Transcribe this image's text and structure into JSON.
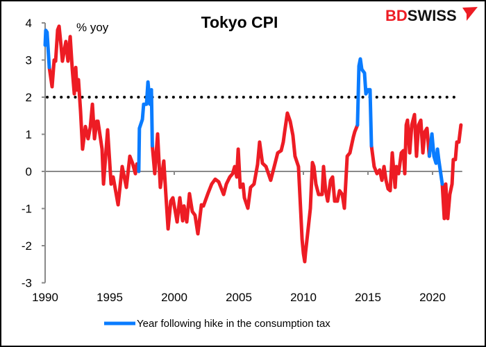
{
  "chart_data": {
    "type": "line",
    "title": "Tokyo CPI",
    "ylabel": "% yoy",
    "xlabel": "",
    "xlim": [
      1990,
      2022.3
    ],
    "ylim": [
      -3,
      4
    ],
    "x_ticks": [
      "1990",
      "1995",
      "2000",
      "2005",
      "2010",
      "2015",
      "2020"
    ],
    "y_ticks": [
      "4",
      "3",
      "2",
      "1",
      "0",
      "-1",
      "-2",
      "-3"
    ],
    "grid": false,
    "reference_line": {
      "value": 2,
      "style": "dotted",
      "color": "#000000"
    },
    "legend": {
      "placement": "bottom",
      "entries": [
        {
          "label": "Year following hike in the consumption tax",
          "color": "#0A7CFF"
        }
      ]
    },
    "colors": {
      "base": "#ED1C24",
      "highlight": "#0A7CFF",
      "axis": "#898989"
    },
    "highlight_periods": [
      [
        1990.0,
        1990.32
      ],
      [
        1997.25,
        1998.3
      ],
      [
        2014.19,
        2015.27
      ],
      [
        2019.75,
        2020.75
      ]
    ],
    "series": [
      {
        "points": [
          [
            1990.0,
            3.4
          ],
          [
            1990.05,
            3.8
          ],
          [
            1990.15,
            3.75
          ],
          [
            1990.32,
            2.8
          ],
          [
            1990.54,
            2.28
          ],
          [
            1990.7,
            3.0
          ],
          [
            1990.81,
            2.97
          ],
          [
            1990.97,
            3.81
          ],
          [
            1991.08,
            3.91
          ],
          [
            1991.24,
            3.35
          ],
          [
            1991.34,
            2.97
          ],
          [
            1991.61,
            3.5
          ],
          [
            1991.77,
            2.97
          ],
          [
            1991.94,
            3.63
          ],
          [
            1992.1,
            2.75
          ],
          [
            1992.26,
            2.09
          ],
          [
            1992.37,
            2.8
          ],
          [
            1992.47,
            2.19
          ],
          [
            1992.58,
            2.47
          ],
          [
            1992.74,
            1.63
          ],
          [
            1992.9,
            0.6
          ],
          [
            1993.12,
            1.21
          ],
          [
            1993.33,
            0.88
          ],
          [
            1993.5,
            1.2
          ],
          [
            1993.66,
            1.81
          ],
          [
            1993.82,
            0.88
          ],
          [
            1994.0,
            1.35
          ],
          [
            1994.09,
            1.35
          ],
          [
            1994.41,
            0.6
          ],
          [
            1994.52,
            -0.34
          ],
          [
            1994.84,
            1.12
          ],
          [
            1995.11,
            -0.34
          ],
          [
            1995.27,
            -0.15
          ],
          [
            1995.65,
            -0.9
          ],
          [
            1995.97,
            0.13
          ],
          [
            1996.29,
            -0.43
          ],
          [
            1996.56,
            0.41
          ],
          [
            1996.77,
            0.22
          ],
          [
            1996.99,
            -0.06
          ],
          [
            1997.1,
            0.2
          ],
          [
            1997.25,
            0.0
          ],
          [
            1997.3,
            1.16
          ],
          [
            1997.53,
            1.4
          ],
          [
            1997.63,
            1.81
          ],
          [
            1997.85,
            1.81
          ],
          [
            1997.96,
            2.41
          ],
          [
            1998.12,
            1.81
          ],
          [
            1998.23,
            2.2
          ],
          [
            1998.3,
            0.69
          ],
          [
            1998.49,
            -0.06
          ],
          [
            1998.71,
            1.01
          ],
          [
            1998.92,
            -0.43
          ],
          [
            1999.19,
            0.28
          ],
          [
            1999.35,
            -0.62
          ],
          [
            1999.52,
            -1.55
          ],
          [
            1999.73,
            -0.8
          ],
          [
            1999.89,
            -0.71
          ],
          [
            2000.22,
            -1.36
          ],
          [
            2000.43,
            -0.71
          ],
          [
            2000.65,
            -1.33
          ],
          [
            2000.75,
            -0.93
          ],
          [
            2000.97,
            -1.36
          ],
          [
            2001.18,
            -0.6
          ],
          [
            2001.4,
            -1.08
          ],
          [
            2001.61,
            -1.18
          ],
          [
            2001.83,
            -1.68
          ],
          [
            2002.1,
            -0.9
          ],
          [
            2002.26,
            -0.93
          ],
          [
            2002.6,
            -0.6
          ],
          [
            2002.9,
            -0.34
          ],
          [
            2003.17,
            -0.21
          ],
          [
            2003.44,
            -0.28
          ],
          [
            2003.82,
            -0.62
          ],
          [
            2004.03,
            -0.34
          ],
          [
            2004.3,
            -0.15
          ],
          [
            2004.52,
            -0.06
          ],
          [
            2004.68,
            0.13
          ],
          [
            2004.84,
            -0.15
          ],
          [
            2004.95,
            0.6
          ],
          [
            2005.11,
            -0.43
          ],
          [
            2005.32,
            -0.34
          ],
          [
            2005.43,
            -0.71
          ],
          [
            2005.7,
            -0.99
          ],
          [
            2005.91,
            -0.43
          ],
          [
            2006.18,
            -0.34
          ],
          [
            2006.45,
            0.19
          ],
          [
            2006.61,
            0.79
          ],
          [
            2006.83,
            0.22
          ],
          [
            2007.1,
            0.13
          ],
          [
            2007.47,
            -0.24
          ],
          [
            2007.74,
            0.13
          ],
          [
            2008.01,
            0.5
          ],
          [
            2008.28,
            0.56
          ],
          [
            2008.44,
            0.79
          ],
          [
            2008.55,
            1.07
          ],
          [
            2008.76,
            1.57
          ],
          [
            2008.98,
            1.35
          ],
          [
            2009.19,
            0.97
          ],
          [
            2009.35,
            0.41
          ],
          [
            2009.62,
            0.13
          ],
          [
            2009.78,
            -0.99
          ],
          [
            2009.9,
            -1.83
          ],
          [
            2010.0,
            -2.21
          ],
          [
            2010.1,
            -2.43
          ],
          [
            2010.16,
            -2.2
          ],
          [
            2010.38,
            -1.5
          ],
          [
            2010.54,
            -1.0
          ],
          [
            2010.7,
            0.24
          ],
          [
            2010.81,
            0.13
          ],
          [
            2010.97,
            -0.34
          ],
          [
            2011.18,
            -0.62
          ],
          [
            2011.45,
            -0.62
          ],
          [
            2011.56,
            0.13
          ],
          [
            2011.72,
            -0.52
          ],
          [
            2011.88,
            -0.8
          ],
          [
            2012.1,
            -0.24
          ],
          [
            2012.26,
            -0.15
          ],
          [
            2012.42,
            -0.8
          ],
          [
            2012.63,
            -0.8
          ],
          [
            2012.8,
            -0.52
          ],
          [
            2013.01,
            -0.62
          ],
          [
            2013.17,
            -0.99
          ],
          [
            2013.39,
            0.41
          ],
          [
            2013.6,
            0.5
          ],
          [
            2013.87,
            0.93
          ],
          [
            2013.98,
            1.07
          ],
          [
            2014.19,
            1.25
          ],
          [
            2014.3,
            2.84
          ],
          [
            2014.41,
            3.03
          ],
          [
            2014.52,
            2.75
          ],
          [
            2014.73,
            2.65
          ],
          [
            2014.84,
            2.09
          ],
          [
            2015.0,
            2.2
          ],
          [
            2015.16,
            2.2
          ],
          [
            2015.27,
            0.69
          ],
          [
            2015.48,
            0.13
          ],
          [
            2015.7,
            -0.06
          ],
          [
            2015.91,
            0.04
          ],
          [
            2016.08,
            -0.24
          ],
          [
            2016.24,
            0.13
          ],
          [
            2016.4,
            -0.24
          ],
          [
            2016.56,
            -0.47
          ],
          [
            2016.72,
            -0.52
          ],
          [
            2016.88,
            0.5
          ],
          [
            2017.1,
            -0.43
          ],
          [
            2017.2,
            0.13
          ],
          [
            2017.37,
            -0.06
          ],
          [
            2017.58,
            0.5
          ],
          [
            2017.74,
            0.56
          ],
          [
            2017.85,
            -0.06
          ],
          [
            2017.96,
            1.25
          ],
          [
            2018.06,
            1.38
          ],
          [
            2018.23,
            0.5
          ],
          [
            2018.39,
            1.25
          ],
          [
            2018.6,
            1.53
          ],
          [
            2018.76,
            0.41
          ],
          [
            2018.92,
            1.25
          ],
          [
            2019.09,
            1.38
          ],
          [
            2019.25,
            0.5
          ],
          [
            2019.41,
            1.07
          ],
          [
            2019.57,
            1.16
          ],
          [
            2019.75,
            0.41
          ],
          [
            2019.95,
            1.01
          ],
          [
            2020.11,
            0.41
          ],
          [
            2020.27,
            0.22
          ],
          [
            2020.38,
            0.6
          ],
          [
            2020.48,
            0.32
          ],
          [
            2020.75,
            -0.34
          ],
          [
            2020.91,
            -1.27
          ],
          [
            2021.02,
            -0.34
          ],
          [
            2021.18,
            -1.27
          ],
          [
            2021.34,
            -0.62
          ],
          [
            2021.51,
            -0.34
          ],
          [
            2021.61,
            0.32
          ],
          [
            2021.77,
            0.32
          ],
          [
            2021.88,
            0.79
          ],
          [
            2022.04,
            0.79
          ],
          [
            2022.2,
            1.25
          ]
        ]
      }
    ]
  },
  "logo": {
    "text_red": "BD",
    "text_black": "SWISS"
  }
}
